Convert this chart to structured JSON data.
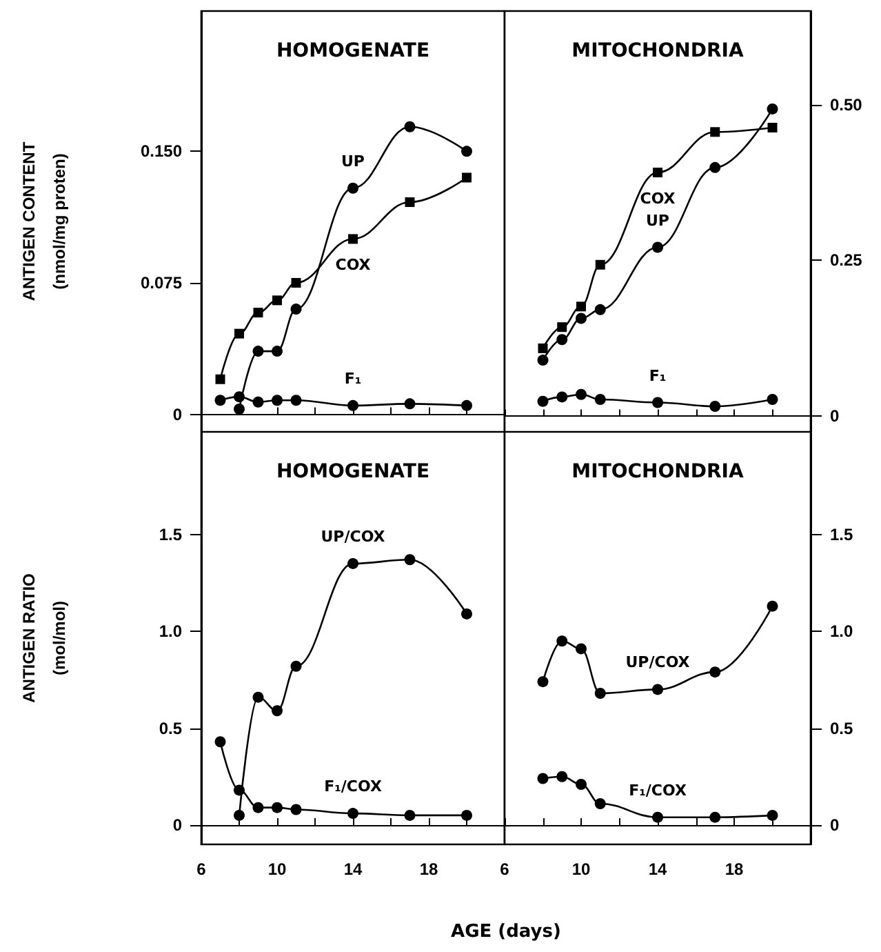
{
  "chart_data": [
    {
      "type": "line",
      "title": "HOMOGENATE",
      "ylabel": "ANTIGEN CONTENT\n(nmol/mg proten)",
      "x": [
        7,
        8,
        9,
        10,
        11,
        14,
        17,
        20
      ],
      "tick_labels": "y",
      "xlim": [
        6,
        22
      ],
      "xticks": [
        6,
        {
          "value": 8,
          "label": null
        },
        10,
        {
          "value": 12,
          "label": null
        },
        14,
        {
          "value": 16,
          "label": null
        },
        18,
        {
          "value": 20,
          "label": null
        }
      ],
      "ylim": [
        -0.01,
        0.23
      ],
      "yticks": [
        0,
        0.075,
        {
          "value": 0.15,
          "label": "0.150"
        }
      ],
      "series": [
        {
          "name": "UP",
          "color": "#000000",
          "marker": "circle",
          "values": [
            null,
            0.003,
            0.036,
            0.036,
            0.06,
            0.129,
            0.164,
            0.15
          ]
        },
        {
          "name": "COX",
          "color": "#000000",
          "marker": "square",
          "values": [
            0.02,
            0.046,
            0.058,
            0.065,
            0.075,
            0.1,
            0.121,
            0.135
          ]
        },
        {
          "name": "F₁",
          "color": "#000000",
          "marker": "circle",
          "values": [
            0.008,
            0.01,
            0.007,
            0.008,
            0.008,
            0.005,
            0.006,
            0.005
          ]
        }
      ]
    },
    {
      "type": "line",
      "title": "MITOCHONDRIA",
      "x": [
        8,
        9,
        10,
        11,
        14,
        17,
        20
      ],
      "tick_labels": "y",
      "xlim": [
        6,
        22
      ],
      "xticks": [
        6,
        {
          "value": 8,
          "label": null
        },
        10,
        {
          "value": 12,
          "label": null
        },
        14,
        {
          "value": 16,
          "label": null
        },
        18,
        {
          "value": 20,
          "label": null
        }
      ],
      "ylim": [
        -0.025,
        0.65
      ],
      "yticks": [
        0,
        {
          "value": 0.25,
          "label": "0.25"
        },
        {
          "value": 0.5,
          "label": "0.50"
        }
      ],
      "series": [
        {
          "name": "UP",
          "color": "#000000",
          "marker": "circle",
          "values": [
            0.09,
            0.123,
            0.157,
            0.171,
            0.271,
            0.399,
            0.493
          ]
        },
        {
          "name": "COX",
          "color": "#000000",
          "marker": "square",
          "values": [
            0.109,
            0.143,
            0.176,
            0.243,
            0.391,
            0.456,
            0.463
          ]
        },
        {
          "name": "F₁",
          "color": "#000000",
          "marker": "circle",
          "values": [
            0.024,
            0.031,
            0.035,
            0.027,
            0.022,
            0.016,
            0.027
          ]
        }
      ]
    },
    {
      "type": "line",
      "title": "HOMOGENATE",
      "ylabel": "ANTIGEN RATIO\n(mol/mol)",
      "xlabel": "AGE (days)",
      "x": [
        7,
        8,
        9,
        10,
        11,
        14,
        17,
        20
      ],
      "xlim": [
        6,
        22
      ],
      "xticks": [
        6,
        {
          "value": 8,
          "label": null
        },
        10,
        {
          "value": 12,
          "label": null
        },
        14,
        {
          "value": 16,
          "label": null
        },
        18,
        {
          "value": 20,
          "label": null
        }
      ],
      "ylim": [
        -0.1,
        2.03
      ],
      "yticks": [
        0,
        0.5,
        {
          "value": 1,
          "label": "1.0"
        },
        1.5
      ],
      "series": [
        {
          "name": "UP/COX",
          "color": "#000000",
          "marker": "circle",
          "values": [
            null,
            0.05,
            0.66,
            0.59,
            0.82,
            1.35,
            1.37,
            1.09
          ]
        },
        {
          "name": "F₁/COX",
          "color": "#000000",
          "marker": "circle",
          "values": [
            0.43,
            0.18,
            0.09,
            0.09,
            0.08,
            0.06,
            0.05,
            0.05
          ]
        }
      ]
    },
    {
      "type": "line",
      "title": "MITOCHONDRIA",
      "x": [
        8,
        9,
        10,
        11,
        14,
        17,
        20
      ],
      "xlim": [
        6,
        22
      ],
      "xticks": [
        6,
        {
          "value": 8,
          "label": null
        },
        10,
        {
          "value": 12,
          "label": null
        },
        14,
        {
          "value": 16,
          "label": null
        },
        18,
        {
          "value": 20,
          "label": null
        }
      ],
      "ylim": [
        -0.1,
        2.03
      ],
      "yticks": [
        0,
        0.5,
        {
          "value": 1,
          "label": "1.0"
        },
        1.5
      ],
      "series": [
        {
          "name": "UP/COX",
          "color": "#000000",
          "marker": "circle",
          "values": [
            0.74,
            0.95,
            0.91,
            0.68,
            0.7,
            0.79,
            1.13
          ]
        },
        {
          "name": "F₁/COX",
          "color": "#000000",
          "marker": "circle",
          "values": [
            0.24,
            0.25,
            0.21,
            0.11,
            0.04,
            0.04,
            0.05
          ]
        }
      ]
    }
  ]
}
